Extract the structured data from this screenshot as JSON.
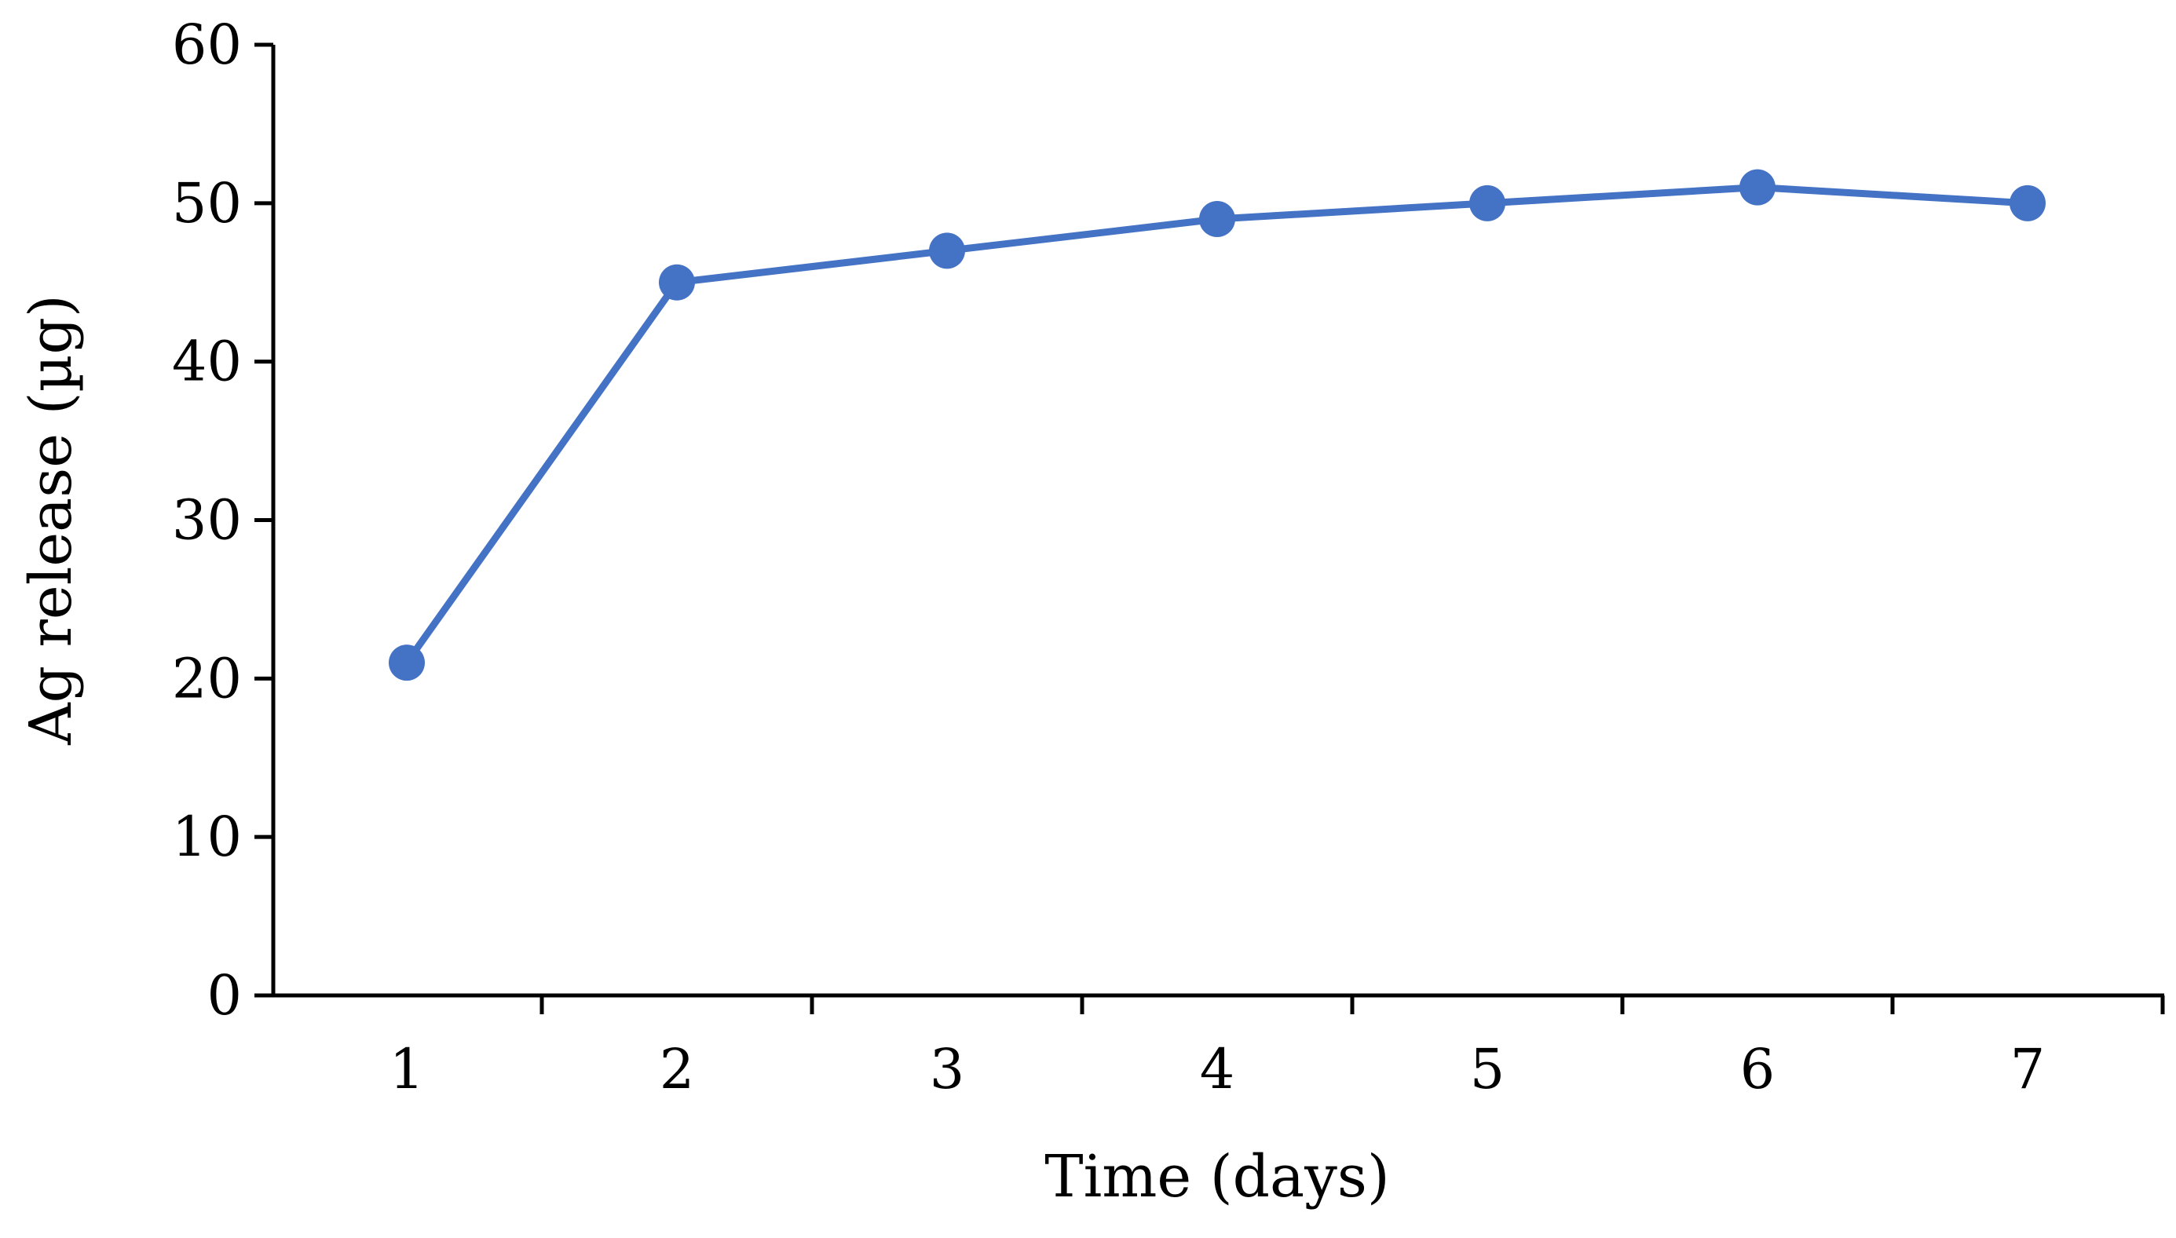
{
  "chart_data": {
    "type": "line",
    "title": "",
    "xlabel": "Time (days)",
    "ylabel": "Ag release (µg)",
    "x": [
      1,
      2,
      3,
      4,
      5,
      6,
      7
    ],
    "categories": [
      "1",
      "2",
      "3",
      "4",
      "5",
      "6",
      "7"
    ],
    "series": [
      {
        "values": [
          21,
          45,
          47,
          49,
          50,
          51,
          50
        ],
        "color": "#4472C4",
        "marker": "circle"
      }
    ],
    "ylim": [
      0,
      60
    ],
    "yticks": [
      0,
      10,
      20,
      30,
      40,
      50,
      60
    ],
    "grid": false,
    "legend": "none"
  }
}
